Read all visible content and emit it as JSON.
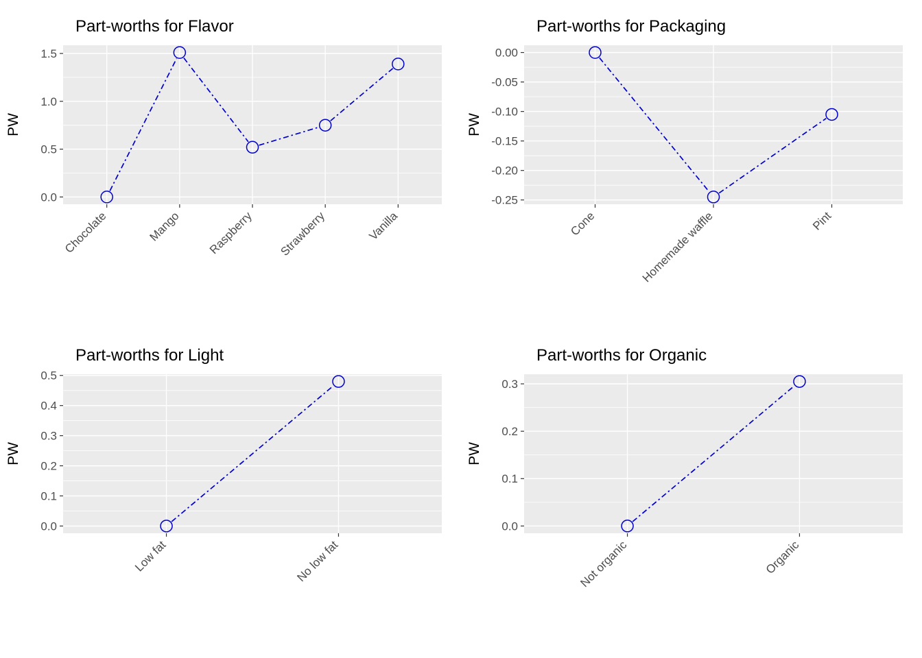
{
  "page": {
    "background": "#ffffff"
  },
  "colors": {
    "panel_bg": "#EBEBEB",
    "grid_major": "#FFFFFF",
    "grid_minor": "#FFFFFF",
    "series_line": "#0000CD",
    "point_stroke": "#0000CD",
    "tick_text": "#4D4D4D",
    "axis_title_text": "#000000",
    "title_text": "#000000",
    "tick_mark": "#333333"
  },
  "chart_data": [
    {
      "type": "line",
      "title": "Part-worths for Flavor",
      "xlabel": "",
      "ylabel": "PW",
      "legend": "none",
      "grid": true,
      "marker": "open-circle",
      "line_style": "dot-dash",
      "categories": [
        "Chocolate",
        "Mango",
        "Raspberry",
        "Strawberry",
        "Vanilla"
      ],
      "values": [
        0.0,
        1.51,
        0.52,
        0.75,
        1.39
      ],
      "ylim": [
        -0.076,
        1.586
      ],
      "ytick_values": [
        0.0,
        0.5,
        1.0,
        1.5
      ],
      "ytick_labels": [
        "0.0",
        "0.5",
        "1.0",
        "1.5"
      ],
      "yminor_values": [
        0.25,
        0.75,
        1.25
      ]
    },
    {
      "type": "line",
      "title": "Part-worths for Packaging",
      "xlabel": "",
      "ylabel": "PW",
      "legend": "none",
      "grid": true,
      "marker": "open-circle",
      "line_style": "dot-dash",
      "categories": [
        "Cone",
        "Homemade waffle",
        "Pint"
      ],
      "values": [
        0.0,
        -0.245,
        -0.105
      ],
      "ylim": [
        -0.2573,
        0.0123
      ],
      "ytick_values": [
        0.0,
        -0.05,
        -0.1,
        -0.15,
        -0.2,
        -0.25
      ],
      "ytick_labels": [
        "0.00",
        "-0.05",
        "-0.10",
        "-0.15",
        "-0.20",
        "-0.25"
      ],
      "yminor_values": [
        -0.025,
        -0.075,
        -0.125,
        -0.175,
        -0.225
      ]
    },
    {
      "type": "line",
      "title": "Part-worths for Light",
      "xlabel": "",
      "ylabel": "PW",
      "legend": "none",
      "grid": true,
      "marker": "open-circle",
      "line_style": "dot-dash",
      "categories": [
        "Low fat",
        "No low fat"
      ],
      "values": [
        0.0,
        0.48
      ],
      "ylim": [
        -0.024,
        0.504
      ],
      "ytick_values": [
        0.0,
        0.1,
        0.2,
        0.3,
        0.4,
        0.5
      ],
      "ytick_labels": [
        "0.0",
        "0.1",
        "0.2",
        "0.3",
        "0.4",
        "0.5"
      ],
      "yminor_values": [
        0.05,
        0.15,
        0.25,
        0.35,
        0.45
      ]
    },
    {
      "type": "line",
      "title": "Part-worths for Organic",
      "xlabel": "",
      "ylabel": "PW",
      "legend": "none",
      "grid": true,
      "marker": "open-circle",
      "line_style": "dot-dash",
      "categories": [
        "Not organic",
        "Organic"
      ],
      "values": [
        0.0,
        0.305
      ],
      "ylim": [
        -0.0153,
        0.3203
      ],
      "ytick_values": [
        0.0,
        0.1,
        0.2,
        0.3
      ],
      "ytick_labels": [
        "0.0",
        "0.1",
        "0.2",
        "0.3"
      ],
      "yminor_values": [
        0.05,
        0.15,
        0.25
      ]
    }
  ]
}
